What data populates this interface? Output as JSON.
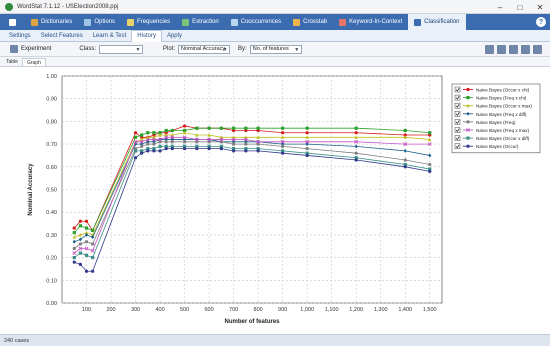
{
  "window": {
    "title": "WordStat 7.1.12 - USElection2008.ppj",
    "controls": [
      "–",
      "□",
      "✕"
    ]
  },
  "ribbon": {
    "tabs": [
      {
        "label": "",
        "icon": "menu-icon",
        "color": "#ffffff"
      },
      {
        "label": "Dictionaries",
        "icon": "book-icon",
        "color": "#d9a441"
      },
      {
        "label": "Options",
        "icon": "options-icon",
        "color": "#9fc4e8"
      },
      {
        "label": "Frequencies",
        "icon": "frequencies-icon",
        "color": "#e8d36a"
      },
      {
        "label": "Extraction",
        "icon": "extraction-icon",
        "color": "#7cc47a"
      },
      {
        "label": "Cooccurrences",
        "icon": "cooccurrence-icon",
        "color": "#b9d7f0"
      },
      {
        "label": "Crosstab",
        "icon": "crosstab-icon",
        "color": "#f0b44a"
      },
      {
        "label": "Keyword-In-Context",
        "icon": "kwic-icon",
        "color": "#e8756a"
      },
      {
        "label": "Classification",
        "icon": "classification-icon",
        "color": "#3b6cb0",
        "active": true
      }
    ],
    "help": "?"
  },
  "subtabs": [
    {
      "label": "Settings"
    },
    {
      "label": "Select Features"
    },
    {
      "label": "Learn & Test"
    },
    {
      "label": "History",
      "active": true
    },
    {
      "label": "Apply"
    }
  ],
  "toolbar": {
    "experiment_label": "Experiment",
    "class_label": "Class:",
    "class_value": "",
    "plot_label": "Plot:",
    "plot_value": "Nominal Accuracy",
    "by_label": "By:",
    "by_value": "No. of features"
  },
  "viewtabs": [
    {
      "label": "Table"
    },
    {
      "label": "Graph",
      "active": true
    }
  ],
  "status": {
    "text": "240 cases"
  },
  "chart_data": {
    "type": "line",
    "xlabel": "Number of features",
    "ylabel": "Nominal Accuracy",
    "xlim": [
      0,
      1550
    ],
    "ylim": [
      0.0,
      1.0
    ],
    "xticks": [
      100,
      200,
      300,
      400,
      500,
      600,
      700,
      800,
      900,
      "1,000",
      "1,100",
      "1,200",
      "1,300",
      "1,400",
      "1,500"
    ],
    "yticks": [
      "0.00",
      "0.10",
      "0.20",
      "0.30",
      "0.40",
      "0.50",
      "0.60",
      "0.70",
      "0.80",
      "0.90",
      "1.00"
    ],
    "grid": true,
    "legend_position": "top-right",
    "x": [
      50,
      75,
      100,
      125,
      300,
      325,
      350,
      375,
      400,
      425,
      450,
      500,
      550,
      600,
      650,
      700,
      750,
      800,
      900,
      1000,
      1200,
      1400,
      1500
    ],
    "series": [
      {
        "name": "Naive Bayes (Occur x chi)",
        "color": "#d81b1b",
        "marker": "circle",
        "values": [
          0.33,
          0.36,
          0.36,
          0.32,
          0.75,
          0.73,
          0.73,
          0.74,
          0.75,
          0.75,
          0.76,
          0.78,
          0.77,
          0.77,
          0.77,
          0.76,
          0.76,
          0.76,
          0.75,
          0.75,
          0.75,
          0.74,
          0.74
        ]
      },
      {
        "name": "Naive Bayes (Freq x chi)",
        "color": "#2ca02c",
        "marker": "square",
        "values": [
          0.31,
          0.34,
          0.33,
          0.32,
          0.73,
          0.74,
          0.75,
          0.75,
          0.75,
          0.76,
          0.76,
          0.76,
          0.77,
          0.77,
          0.77,
          0.77,
          0.77,
          0.77,
          0.77,
          0.77,
          0.77,
          0.76,
          0.75
        ]
      },
      {
        "name": "Naive Bayes (Occur x max)",
        "color": "#bfbf1f",
        "marker": "triangle",
        "values": [
          0.29,
          0.3,
          0.31,
          0.3,
          0.71,
          0.72,
          0.73,
          0.73,
          0.74,
          0.74,
          0.74,
          0.75,
          0.74,
          0.74,
          0.73,
          0.73,
          0.73,
          0.73,
          0.73,
          0.73,
          0.73,
          0.73,
          0.72
        ]
      },
      {
        "name": "Naive Bayes (Freq x diff)",
        "color": "#1a5f8a",
        "marker": "diamond",
        "values": [
          0.27,
          0.28,
          0.3,
          0.29,
          0.7,
          0.7,
          0.71,
          0.71,
          0.72,
          0.72,
          0.72,
          0.72,
          0.72,
          0.72,
          0.71,
          0.71,
          0.71,
          0.71,
          0.7,
          0.7,
          0.69,
          0.67,
          0.65
        ]
      },
      {
        "name": "Naive Bayes (Freq)",
        "color": "#7f7f7f",
        "marker": "circle",
        "values": [
          0.24,
          0.26,
          0.27,
          0.26,
          0.68,
          0.69,
          0.7,
          0.7,
          0.71,
          0.71,
          0.71,
          0.71,
          0.71,
          0.71,
          0.71,
          0.7,
          0.7,
          0.7,
          0.69,
          0.68,
          0.66,
          0.63,
          0.61
        ]
      },
      {
        "name": "Naive Bayes (Freq x max)",
        "color": "#c455c4",
        "marker": "x",
        "values": [
          0.22,
          0.24,
          0.24,
          0.23,
          0.71,
          0.71,
          0.72,
          0.72,
          0.72,
          0.73,
          0.73,
          0.73,
          0.72,
          0.72,
          0.72,
          0.72,
          0.72,
          0.71,
          0.71,
          0.71,
          0.71,
          0.7,
          0.7
        ]
      },
      {
        "name": "Naive Bayes (Occur x diff)",
        "color": "#3a8f86",
        "marker": "square",
        "values": [
          0.2,
          0.22,
          0.21,
          0.2,
          0.67,
          0.67,
          0.68,
          0.68,
          0.69,
          0.69,
          0.69,
          0.69,
          0.69,
          0.69,
          0.69,
          0.68,
          0.68,
          0.68,
          0.67,
          0.66,
          0.64,
          0.61,
          0.59
        ]
      },
      {
        "name": "Naive Bayes (Occur)",
        "color": "#303a8c",
        "marker": "circle",
        "values": [
          0.18,
          0.17,
          0.14,
          0.14,
          0.64,
          0.66,
          0.67,
          0.67,
          0.67,
          0.68,
          0.68,
          0.68,
          0.68,
          0.68,
          0.68,
          0.67,
          0.67,
          0.67,
          0.66,
          0.65,
          0.63,
          0.6,
          0.58
        ]
      }
    ]
  }
}
